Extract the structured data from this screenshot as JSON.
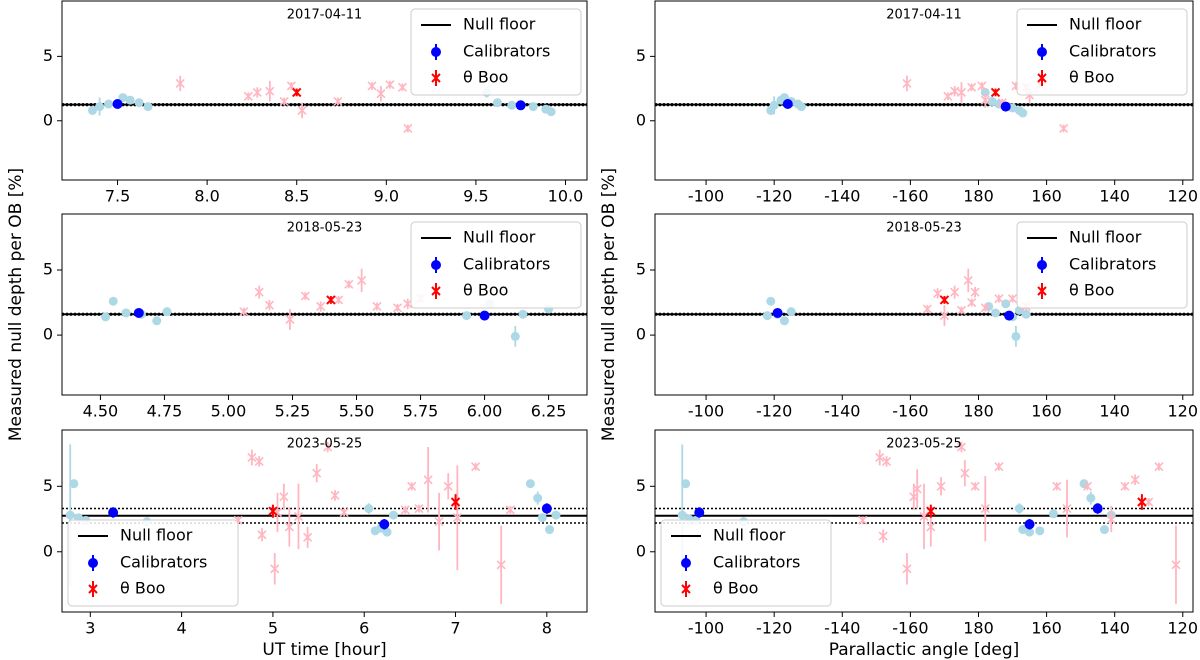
{
  "chart_data": [
    {
      "type": "scatter",
      "title": "2017-04-11",
      "xlim": [
        7.19,
        10.12
      ],
      "xticks": [
        7.5,
        {
          "value": 8,
          "label": "8.0"
        },
        8.5,
        {
          "value": 9,
          "label": "9.0"
        },
        9.5,
        {
          "value": 10,
          "label": "10.0"
        }
      ],
      "ylim": [
        -4.6,
        9.3
      ],
      "yticks": [
        0,
        5
      ],
      "legend": "upper right",
      "null_floor": {
        "name": "Null floor",
        "color": "#000000",
        "value": 1.25,
        "error": 0.06
      },
      "series": [
        {
          "name": "Calibrators",
          "color": "#0000ff",
          "marker": "circle",
          "x": [
            7.5,
            9.75
          ],
          "values": [
            1.3,
            1.2
          ],
          "errors": [
            0.2,
            0.2
          ],
          "ob_color": "#add8e6",
          "ob_x": [
            7.36,
            7.4,
            7.45,
            7.53,
            7.57,
            7.62,
            7.67,
            9.56,
            9.62,
            9.7,
            9.82,
            9.89,
            9.92
          ],
          "ob_values": [
            0.8,
            1.1,
            1.3,
            1.8,
            1.6,
            1.4,
            1.1,
            2.2,
            1.4,
            1.2,
            1.1,
            0.9,
            0.7
          ],
          "ob_errors": [
            0.3,
            0.7,
            0.3,
            0.3,
            0.3,
            0.3,
            0.3,
            0.4,
            0.3,
            0.3,
            0.3,
            0.3,
            0.3
          ]
        },
        {
          "name": "θ Boo",
          "color": "#ff0000",
          "marker": "x",
          "x": [
            8.5
          ],
          "values": [
            2.2
          ],
          "errors": [
            0.3
          ],
          "ob_color": "#ffb6c1",
          "ob_x": [
            7.85,
            8.23,
            8.28,
            8.35,
            8.43,
            8.47,
            8.53,
            8.73,
            8.92,
            8.97,
            9.02,
            9.09,
            9.12
          ],
          "ob_values": [
            2.9,
            1.9,
            2.2,
            2.3,
            1.5,
            2.7,
            0.8,
            1.5,
            2.7,
            2.1,
            2.8,
            2.6,
            -0.6
          ],
          "ob_errors": [
            0.6,
            0.3,
            0.4,
            0.8,
            0.3,
            0.3,
            0.6,
            0.3,
            0.3,
            0.6,
            0.3,
            0.3,
            0.3
          ]
        }
      ]
    },
    {
      "type": "scatter",
      "title": "2018-05-23",
      "ylabel": "Measured null depth per OB [%]",
      "xlim": [
        4.35,
        6.4
      ],
      "xticks": [
        {
          "value": 4.5,
          "label": "4.50"
        },
        4.75,
        {
          "value": 5,
          "label": "5.00"
        },
        5.25,
        {
          "value": 5.5,
          "label": "5.50"
        },
        5.75,
        {
          "value": 6,
          "label": "6.00"
        },
        6.25
      ],
      "ylim": [
        -4.6,
        9.3
      ],
      "yticks": [
        0,
        5
      ],
      "legend": "upper right",
      "null_floor": {
        "name": "Null floor",
        "color": "#000000",
        "value": 1.6,
        "error": 0.06
      },
      "series": [
        {
          "name": "Calibrators",
          "color": "#0000ff",
          "marker": "circle",
          "x": [
            4.65,
            6.0
          ],
          "values": [
            1.7,
            1.5
          ],
          "errors": [
            0.2,
            0.2
          ],
          "ob_color": "#add8e6",
          "ob_x": [
            4.52,
            4.55,
            4.6,
            4.66,
            4.72,
            4.76,
            5.93,
            6.02,
            6.12,
            6.15,
            6.25
          ],
          "ob_values": [
            1.4,
            2.6,
            1.7,
            1.6,
            1.1,
            1.8,
            1.5,
            2.4,
            -0.1,
            1.6,
            2.0
          ],
          "ob_errors": [
            0.3,
            0.3,
            0.3,
            0.3,
            0.3,
            0.3,
            0.3,
            0.3,
            0.8,
            0.3,
            0.3
          ]
        },
        {
          "name": "θ Boo",
          "color": "#ff0000",
          "marker": "x",
          "x": [
            5.4
          ],
          "values": [
            2.7
          ],
          "errors": [
            0.3
          ],
          "ob_color": "#ffb6c1",
          "ob_x": [
            5.06,
            5.12,
            5.16,
            5.24,
            5.3,
            5.36,
            5.43,
            5.47,
            5.52,
            5.58,
            5.66,
            5.7,
            5.75
          ],
          "ob_values": [
            1.8,
            3.3,
            2.3,
            1.2,
            3.0,
            2.2,
            2.7,
            3.9,
            4.2,
            2.2,
            2.1,
            2.4,
            2.8
          ],
          "ob_errors": [
            0.3,
            0.5,
            0.4,
            0.8,
            0.3,
            0.4,
            0.3,
            0.3,
            0.9,
            0.3,
            0.3,
            0.4,
            0.3
          ]
        }
      ]
    },
    {
      "type": "scatter",
      "title": "2023-05-25",
      "xlabel": "UT time [hour]",
      "xlim": [
        2.69,
        8.44
      ],
      "xticks": [
        3,
        4,
        5,
        6,
        7,
        8
      ],
      "ylim": [
        -4.6,
        9.3
      ],
      "yticks": [
        0,
        5
      ],
      "legend": "lower left",
      "null_floor": {
        "name": "Null floor",
        "color": "#000000",
        "value": 2.75,
        "error": 0.55
      },
      "series": [
        {
          "name": "Calibrators",
          "color": "#0000ff",
          "marker": "circle",
          "x": [
            3.25,
            6.22,
            8.0
          ],
          "values": [
            3.0,
            2.1,
            3.3
          ],
          "errors": [
            0.4,
            0.4,
            0.4
          ],
          "ob_color": "#add8e6",
          "ob_x": [
            2.78,
            2.82,
            2.87,
            2.95,
            3.62,
            6.05,
            6.12,
            6.18,
            6.25,
            6.32,
            7.82,
            7.9,
            7.95,
            8.03,
            8.1
          ],
          "ob_values": [
            2.8,
            5.2,
            2.6,
            2.4,
            2.3,
            3.3,
            1.6,
            1.8,
            1.5,
            2.8,
            5.2,
            4.1,
            2.6,
            1.7,
            2.8
          ],
          "ob_errors": [
            5.4,
            0.3,
            0.3,
            0.3,
            0.3,
            0.4,
            0.3,
            0.3,
            0.3,
            0.3,
            0.3,
            0.5,
            0.3,
            0.3,
            0.3
          ]
        },
        {
          "name": "θ Boo",
          "color": "#ff0000",
          "marker": "x",
          "x": [
            5.0,
            7.0
          ],
          "values": [
            3.1,
            3.8
          ],
          "errors": [
            0.5,
            0.6
          ],
          "ob_color": "#ffb6c1",
          "ob_x": [
            4.62,
            4.77,
            4.85,
            4.88,
            5.02,
            5.05,
            5.12,
            5.18,
            5.28,
            5.38,
            5.48,
            5.6,
            5.68,
            5.78,
            6.45,
            6.52,
            6.6,
            6.7,
            6.82,
            6.92,
            7.02,
            7.22,
            7.5,
            7.6
          ],
          "ob_values": [
            2.4,
            7.2,
            6.9,
            1.3,
            -1.3,
            3.0,
            4.2,
            1.9,
            2.7,
            1.1,
            6.0,
            8.0,
            4.3,
            3.0,
            3.2,
            5.0,
            3.3,
            5.5,
            2.3,
            5.0,
            2.6,
            6.5,
            -1.0,
            3.2
          ],
          "ob_errors": [
            0.3,
            0.6,
            0.4,
            0.5,
            1.2,
            1.5,
            1.0,
            1.5,
            2.5,
            0.8,
            0.7,
            0.4,
            0.4,
            0.3,
            0.3,
            0.3,
            0.3,
            2.5,
            2.2,
            1.0,
            4.0,
            0.3,
            3.0,
            0.3
          ]
        }
      ]
    },
    {
      "type": "scatter",
      "title": "2017-04-11",
      "xlim": [
        -85,
        117
      ],
      "x_wrap": 360,
      "xticks": [
        -100,
        -120,
        -140,
        -160,
        180,
        160,
        140,
        120
      ],
      "ylim": [
        -4.6,
        9.3
      ],
      "yticks": [
        0,
        5
      ],
      "legend": "upper right",
      "null_floor": {
        "name": "Null floor",
        "color": "#000000",
        "value": 1.25,
        "error": 0.06
      },
      "series": [
        {
          "name": "Calibrators",
          "color": "#0000ff",
          "marker": "circle",
          "x": [
            -124,
            172
          ],
          "values": [
            1.3,
            1.1
          ],
          "errors": [
            0.2,
            0.2
          ],
          "ob_color": "#add8e6",
          "ob_x": [
            -119,
            -120,
            -122,
            -123,
            -125,
            -127,
            -128,
            178,
            176,
            174,
            170,
            168,
            167
          ],
          "ob_values": [
            0.8,
            1.2,
            1.6,
            1.8,
            1.5,
            1.3,
            1.1,
            2.2,
            1.5,
            1.3,
            1.0,
            0.8,
            0.6
          ],
          "ob_errors": [
            0.3,
            0.7,
            0.3,
            0.3,
            0.3,
            0.3,
            0.3,
            0.3,
            0.3,
            0.3,
            0.3,
            0.3,
            0.3
          ]
        },
        {
          "name": "θ Boo",
          "color": "#ff0000",
          "marker": "x",
          "x": [
            175
          ],
          "values": [
            2.2
          ],
          "errors": [
            0.3
          ],
          "ob_color": "#ffb6c1",
          "ob_x": [
            -159,
            -171,
            -173,
            -175,
            -178,
            179,
            178,
            173,
            169,
            166,
            165,
            162,
            155
          ],
          "ob_values": [
            2.9,
            1.9,
            2.3,
            2.2,
            2.6,
            2.7,
            1.6,
            1.4,
            2.7,
            2.6,
            2.0,
            2.8,
            -0.6
          ],
          "ob_errors": [
            0.6,
            0.3,
            0.4,
            0.8,
            0.3,
            0.3,
            0.6,
            0.3,
            0.3,
            0.3,
            0.6,
            0.3,
            0.3
          ]
        }
      ]
    },
    {
      "type": "scatter",
      "title": "2018-05-23",
      "ylabel": "Measured null depth per OB [%]",
      "xlim": [
        -85,
        117
      ],
      "x_wrap": 360,
      "xticks": [
        -100,
        -120,
        -140,
        -160,
        180,
        160,
        140,
        120
      ],
      "ylim": [
        -4.6,
        9.3
      ],
      "yticks": [
        0,
        5
      ],
      "legend": "upper right",
      "null_floor": {
        "name": "Null floor",
        "color": "#000000",
        "value": 1.6,
        "error": 0.06
      },
      "series": [
        {
          "name": "Calibrators",
          "color": "#0000ff",
          "marker": "circle",
          "x": [
            -121,
            171
          ],
          "values": [
            1.7,
            1.5
          ],
          "errors": [
            0.2,
            0.2
          ],
          "ob_color": "#add8e6",
          "ob_x": [
            -119,
            -118,
            -121,
            -123,
            -125,
            177,
            175,
            172,
            170,
            169,
            168,
            166
          ],
          "ob_values": [
            2.6,
            1.5,
            1.6,
            1.1,
            1.8,
            2.2,
            1.7,
            2.4,
            1.4,
            -0.1,
            1.9,
            1.6
          ],
          "ob_errors": [
            0.3,
            0.3,
            0.3,
            0.3,
            0.3,
            0.3,
            0.3,
            0.3,
            0.3,
            0.8,
            0.3,
            0.3
          ]
        },
        {
          "name": "θ Boo",
          "color": "#ff0000",
          "marker": "x",
          "x": [
            -170
          ],
          "values": [
            2.7
          ],
          "errors": [
            0.3
          ],
          "ob_color": "#ffb6c1",
          "ob_x": [
            -165,
            -168,
            -170,
            -173,
            -175,
            -177,
            -178,
            -179,
            178,
            174,
            170,
            166
          ],
          "ob_values": [
            2.0,
            3.2,
            1.5,
            3.3,
            1.9,
            4.2,
            2.5,
            3.3,
            2.1,
            2.8,
            2.8,
            2.2
          ],
          "ob_errors": [
            0.3,
            0.4,
            0.8,
            0.5,
            0.3,
            0.9,
            0.3,
            0.4,
            0.3,
            0.3,
            0.3,
            0.3
          ]
        }
      ]
    },
    {
      "type": "scatter",
      "title": "2023-05-25",
      "xlabel": "Parallactic angle [deg]",
      "xlim": [
        -85,
        117
      ],
      "x_wrap": 360,
      "xticks": [
        -100,
        -120,
        -140,
        -160,
        180,
        160,
        140,
        120
      ],
      "ylim": [
        -4.6,
        9.3
      ],
      "yticks": [
        0,
        5
      ],
      "legend": "lower left",
      "null_floor": {
        "name": "Null floor",
        "color": "#000000",
        "value": 2.75,
        "error": 0.55
      },
      "series": [
        {
          "name": "Calibrators",
          "color": "#0000ff",
          "marker": "circle",
          "x": [
            -98,
            165,
            145
          ],
          "values": [
            3.0,
            2.1,
            3.3
          ],
          "errors": [
            0.4,
            0.4,
            0.4
          ],
          "ob_color": "#add8e6",
          "ob_x": [
            -93,
            -94,
            -95,
            -97,
            -111,
            168,
            167,
            165,
            162,
            158,
            149,
            147,
            145,
            143,
            141
          ],
          "ob_values": [
            2.8,
            5.2,
            2.5,
            2.4,
            2.3,
            3.3,
            1.7,
            1.5,
            1.6,
            2.9,
            5.2,
            4.1,
            3.4,
            1.7,
            2.8
          ],
          "ob_errors": [
            5.4,
            0.3,
            0.3,
            0.3,
            0.3,
            0.4,
            0.3,
            0.3,
            0.3,
            0.3,
            0.3,
            0.5,
            0.3,
            0.3,
            0.3
          ]
        },
        {
          "name": "θ Boo",
          "color": "#ff0000",
          "marker": "x",
          "x": [
            -166,
            132
          ],
          "values": [
            3.1,
            3.8
          ],
          "errors": [
            0.5,
            0.6
          ],
          "ob_color": "#ffb6c1",
          "ob_x": [
            -146,
            -151,
            -152,
            -153,
            -159,
            -161,
            -162,
            -164,
            -166,
            -169,
            -175,
            -176,
            -179,
            178,
            174,
            157,
            154,
            148,
            141,
            137,
            134,
            130,
            127,
            122
          ],
          "ob_values": [
            2.4,
            7.2,
            1.2,
            6.9,
            -1.3,
            4.2,
            4.8,
            2.7,
            1.9,
            5.0,
            8.0,
            6.0,
            5.0,
            3.3,
            6.5,
            5.0,
            3.3,
            5.0,
            2.5,
            5.0,
            5.5,
            3.8,
            6.5,
            -1.0
          ],
          "ob_errors": [
            0.3,
            0.6,
            0.5,
            0.4,
            1.2,
            1.0,
            1.5,
            2.5,
            1.5,
            0.7,
            0.4,
            1.0,
            0.3,
            2.5,
            0.3,
            0.3,
            2.2,
            0.3,
            1.0,
            0.3,
            0.4,
            0.3,
            0.3,
            3.0
          ]
        }
      ]
    }
  ]
}
